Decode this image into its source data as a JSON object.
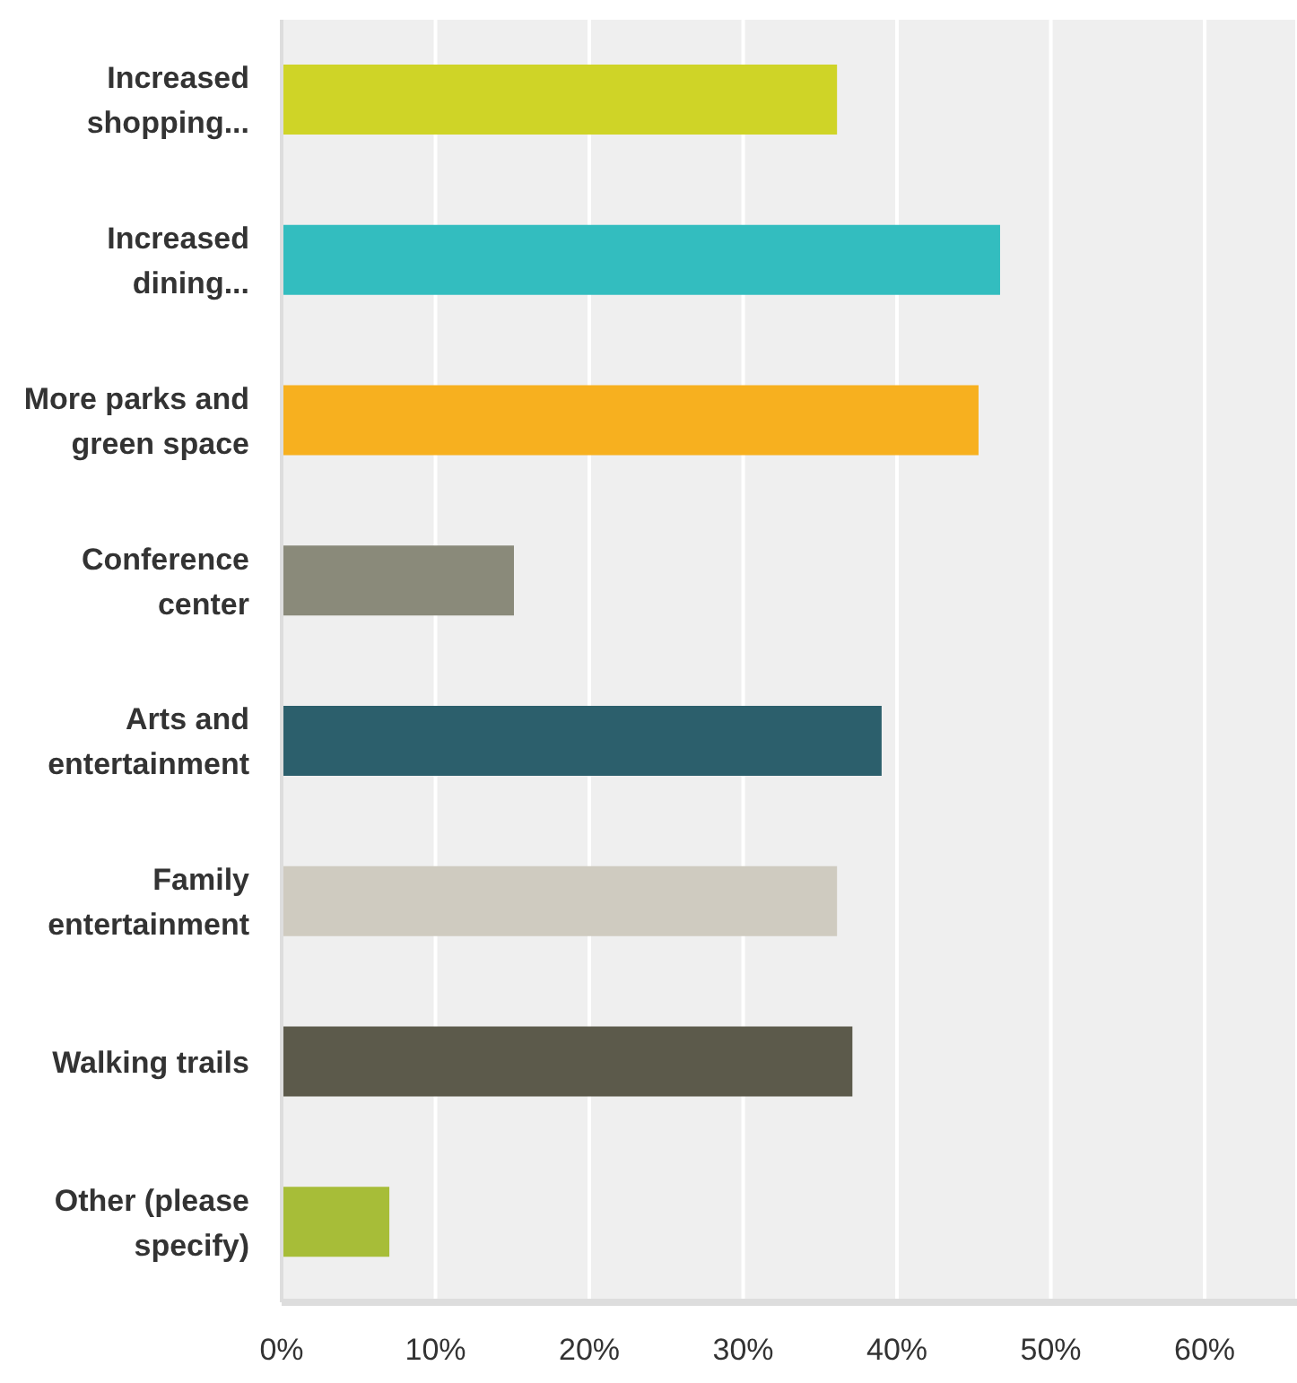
{
  "chart_data": {
    "type": "bar",
    "orientation": "horizontal",
    "categories": [
      "Increased shopping...",
      "Increased dining...",
      "More parks and green space",
      "Conference center",
      "Arts and entertainment",
      "Family entertainment",
      "Walking trails",
      "Other (please specify)"
    ],
    "values": [
      36.1,
      46.7,
      45.3,
      15.1,
      39.0,
      36.1,
      37.1,
      7.0
    ],
    "colors": [
      "#cfd427",
      "#33bdbf",
      "#f7b01f",
      "#8a8a7a",
      "#2c5f6c",
      "#cfcbc0",
      "#5c5a4b",
      "#a7bd38"
    ],
    "xlim": [
      0,
      66
    ],
    "xticks": [
      {
        "value": 0,
        "label": "0%"
      },
      {
        "value": 10,
        "label": "10%"
      },
      {
        "value": 20,
        "label": "20%"
      },
      {
        "value": 30,
        "label": "30%"
      },
      {
        "value": 40,
        "label": "40%"
      },
      {
        "value": 50,
        "label": "50%"
      },
      {
        "value": 60,
        "label": "60%"
      }
    ],
    "grid": "x",
    "legend": false
  }
}
